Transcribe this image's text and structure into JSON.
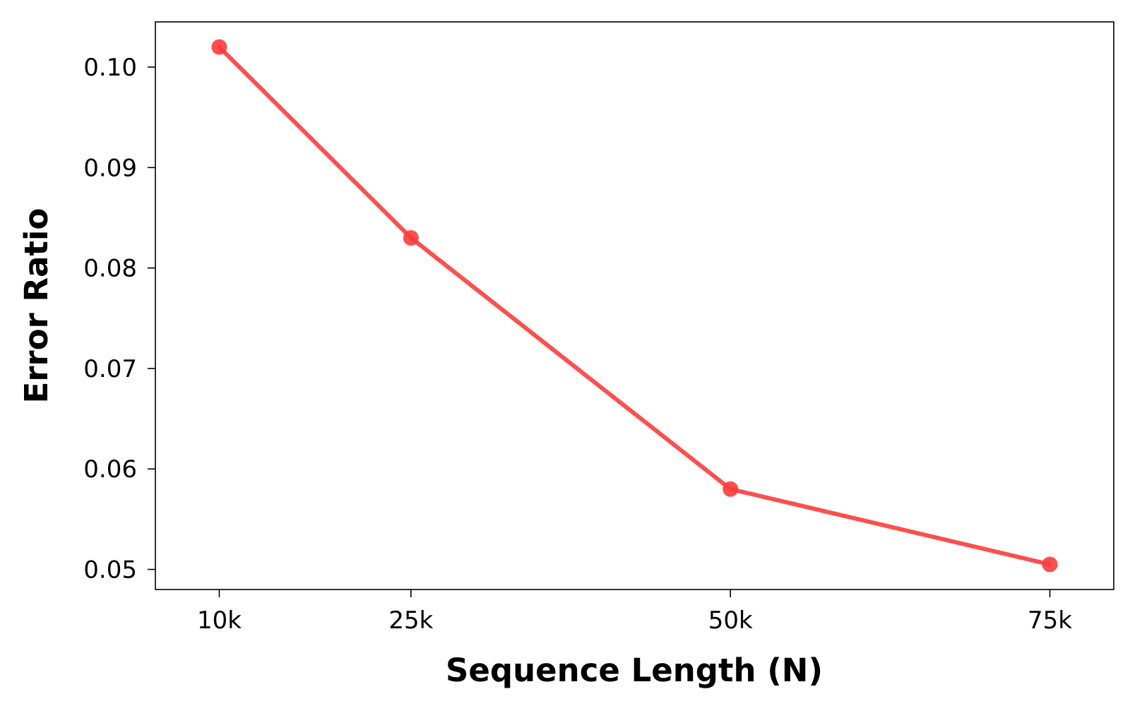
{
  "chart_data": {
    "type": "line",
    "title": "",
    "xlabel": "Sequence Length (N)",
    "ylabel": "Error Ratio",
    "x": [
      10000,
      25000,
      50000,
      75000
    ],
    "x_tick_labels": [
      "10k",
      "25k",
      "50k",
      "75k"
    ],
    "xlim": [
      5000,
      80000
    ],
    "ylim": [
      0.048,
      0.1045
    ],
    "y_ticks": [
      0.05,
      0.06,
      0.07,
      0.08,
      0.09,
      0.1
    ],
    "y_tick_labels": [
      "0.05",
      "0.06",
      "0.07",
      "0.08",
      "0.09",
      "0.10"
    ],
    "grid": false,
    "legend": "none",
    "series": [
      {
        "values": [
          0.102,
          0.083,
          0.058,
          0.0505
        ],
        "color": "#ff3b3b",
        "marker": "circle"
      }
    ]
  }
}
